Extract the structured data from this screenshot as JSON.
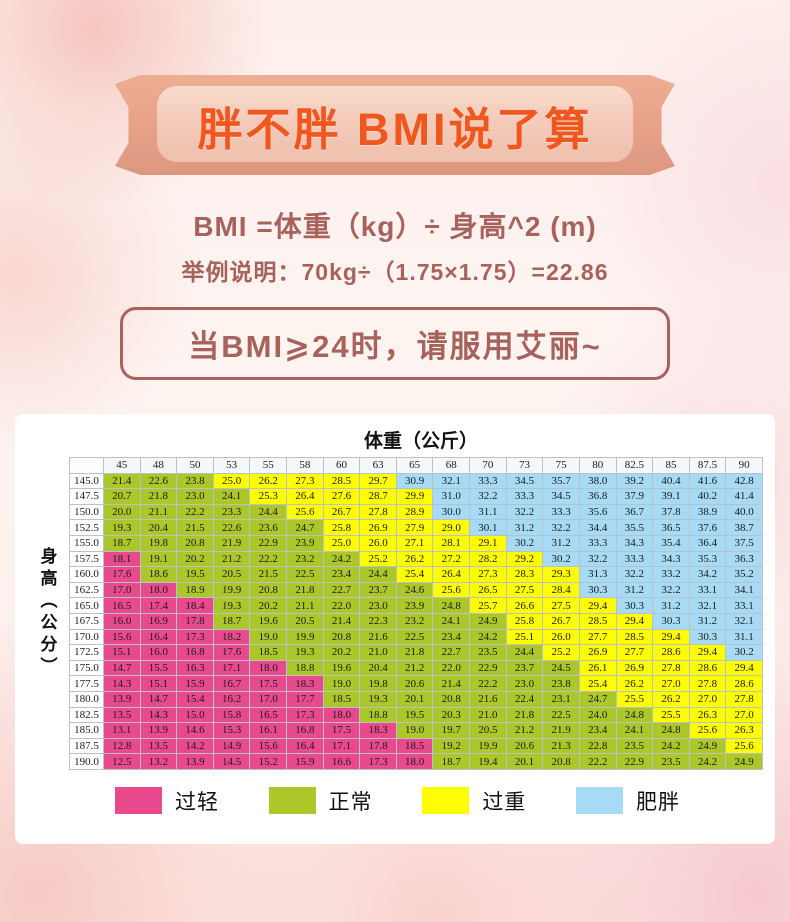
{
  "banner": {
    "title": "胖不胖 BMI说了算"
  },
  "formula": {
    "line1": "BMI =体重（kg）÷ 身高^2 (m)",
    "line2": "举例说明：70kg÷（1.75×1.75）=22.86"
  },
  "callout": {
    "text": "当BMI⩾24时，请服用艾丽~"
  },
  "chart_data": {
    "type": "heatmap",
    "title": "体重（公斤）",
    "xlabel": "体重（公斤）",
    "ylabel": "身高（公分）",
    "grid": true,
    "weight_columns": [
      "45",
      "48",
      "50",
      "53",
      "55",
      "58",
      "60",
      "63",
      "65",
      "68",
      "70",
      "73",
      "75",
      "80",
      "82.5",
      "85",
      "87.5",
      "90"
    ],
    "categories": {
      "p": {
        "label": "过轻",
        "color": "#e94a8e"
      },
      "g": {
        "label": "正常",
        "color": "#abc72a"
      },
      "y": {
        "label": "过重",
        "color": "#fffe00"
      },
      "b": {
        "label": "肥胖",
        "color": "#a7dbf5"
      }
    },
    "legend": [
      {
        "key": "p",
        "label": "过轻"
      },
      {
        "key": "g",
        "label": "正常"
      },
      {
        "key": "y",
        "label": "过重"
      },
      {
        "key": "b",
        "label": "肥胖"
      }
    ],
    "rows": [
      {
        "height": "145.0",
        "bmi": [
          21.4,
          22.6,
          23.8,
          25.0,
          26.2,
          27.3,
          28.5,
          29.7,
          30.9,
          32.1,
          33.3,
          34.5,
          35.7,
          38.0,
          39.2,
          40.4,
          41.6,
          42.8
        ],
        "cat": "gggyyyyybbbbbbbbbb"
      },
      {
        "height": "147.5",
        "bmi": [
          20.7,
          21.8,
          23.0,
          24.1,
          25.3,
          26.4,
          27.6,
          28.7,
          29.9,
          31.0,
          32.2,
          33.3,
          34.5,
          36.8,
          37.9,
          39.1,
          40.2,
          41.4
        ],
        "cat": "ggggyyyyybbbbbbbbb"
      },
      {
        "height": "150.0",
        "bmi": [
          20.0,
          21.1,
          22.2,
          23.3,
          24.4,
          25.6,
          26.7,
          27.8,
          28.9,
          30.0,
          31.1,
          32.2,
          33.3,
          35.6,
          36.7,
          37.8,
          38.9,
          40.0
        ],
        "cat": "gggggyyyybbbbbbbbb"
      },
      {
        "height": "152.5",
        "bmi": [
          19.3,
          20.4,
          21.5,
          22.6,
          23.6,
          24.7,
          25.8,
          26.9,
          27.9,
          29.0,
          30.1,
          31.2,
          32.2,
          34.4,
          35.5,
          36.5,
          37.6,
          38.7
        ],
        "cat": "ggggggyyyybbbbbbbb"
      },
      {
        "height": "155.0",
        "bmi": [
          18.7,
          19.8,
          20.8,
          21.9,
          22.9,
          23.9,
          25.0,
          26.0,
          27.1,
          28.1,
          29.1,
          30.2,
          31.2,
          33.3,
          34.3,
          35.4,
          36.4,
          37.5
        ],
        "cat": "ggggggyyyyybbbbbbb"
      },
      {
        "height": "157.5",
        "bmi": [
          18.1,
          19.1,
          20.2,
          21.2,
          22.2,
          23.2,
          24.2,
          25.2,
          26.2,
          27.2,
          28.2,
          29.2,
          30.2,
          32.2,
          33.3,
          34.3,
          35.3,
          36.3
        ],
        "cat": "pggggggyyyyybbbbbb"
      },
      {
        "height": "160.0",
        "bmi": [
          17.6,
          18.6,
          19.5,
          20.5,
          21.5,
          22.5,
          23.4,
          24.4,
          25.4,
          26.4,
          27.3,
          28.3,
          29.3,
          31.3,
          32.2,
          33.2,
          34.2,
          35.2
        ],
        "cat": "pgggggggyyyyybbbbb"
      },
      {
        "height": "162.5",
        "bmi": [
          17.0,
          18.0,
          18.9,
          19.9,
          20.8,
          21.8,
          22.7,
          23.7,
          24.6,
          25.6,
          26.5,
          27.5,
          28.4,
          30.3,
          31.2,
          32.2,
          33.1,
          34.1
        ],
        "cat": "ppgggggggyyyybbbbb"
      },
      {
        "height": "165.0",
        "bmi": [
          16.5,
          17.4,
          18.4,
          19.3,
          20.2,
          21.1,
          22.0,
          23.0,
          23.9,
          24.8,
          25.7,
          26.6,
          27.5,
          29.4,
          30.3,
          31.2,
          32.1,
          33.1
        ],
        "cat": "pppgggggggyyyybbbb"
      },
      {
        "height": "167.5",
        "bmi": [
          16.0,
          16.9,
          17.8,
          18.7,
          19.6,
          20.5,
          21.4,
          22.3,
          23.2,
          24.1,
          24.9,
          25.8,
          26.7,
          28.5,
          29.4,
          30.3,
          31.2,
          32.1
        ],
        "cat": "pppggggggggyyyybbb"
      },
      {
        "height": "170.0",
        "bmi": [
          15.6,
          16.4,
          17.3,
          18.2,
          19.0,
          19.9,
          20.8,
          21.6,
          22.5,
          23.4,
          24.2,
          25.1,
          26.0,
          27.7,
          28.5,
          29.4,
          30.3,
          31.1
        ],
        "cat": "ppppgggggggyyyyybb"
      },
      {
        "height": "172.5",
        "bmi": [
          15.1,
          16.0,
          16.8,
          17.6,
          18.5,
          19.3,
          20.2,
          21.0,
          21.8,
          22.7,
          23.5,
          24.4,
          25.2,
          26.9,
          27.7,
          28.6,
          29.4,
          30.2
        ],
        "cat": "ppppggggggggyyyyyb"
      },
      {
        "height": "175.0",
        "bmi": [
          14.7,
          15.5,
          16.3,
          17.1,
          18.0,
          18.8,
          19.6,
          20.4,
          21.2,
          22.0,
          22.9,
          23.7,
          24.5,
          26.1,
          26.9,
          27.8,
          28.6,
          29.4
        ],
        "cat": "pppppggggggggyyyyy"
      },
      {
        "height": "177.5",
        "bmi": [
          14.3,
          15.1,
          15.9,
          16.7,
          17.5,
          18.3,
          19.0,
          19.8,
          20.6,
          21.4,
          22.2,
          23.0,
          23.8,
          25.4,
          26.2,
          27.0,
          27.8,
          28.6
        ],
        "cat": "ppppppgggggggyyyyy"
      },
      {
        "height": "180.0",
        "bmi": [
          13.9,
          14.7,
          15.4,
          16.2,
          17.0,
          17.7,
          18.5,
          19.3,
          20.1,
          20.8,
          21.6,
          22.4,
          23.1,
          24.7,
          25.5,
          26.2,
          27.0,
          27.8
        ],
        "cat": "ppppppggggggggyyyy"
      },
      {
        "height": "182.5",
        "bmi": [
          13.5,
          14.3,
          15.0,
          15.8,
          16.5,
          17.3,
          18.0,
          18.8,
          19.5,
          20.3,
          21.0,
          21.8,
          22.5,
          24.0,
          24.8,
          25.5,
          26.3,
          27.0
        ],
        "cat": "pppppppggggggggyyy"
      },
      {
        "height": "185.0",
        "bmi": [
          13.1,
          13.9,
          14.6,
          15.3,
          16.1,
          16.8,
          17.5,
          18.3,
          19.0,
          19.7,
          20.5,
          21.2,
          21.9,
          23.4,
          24.1,
          24.8,
          25.6,
          26.3
        ],
        "cat": "ppppppppggggggggyy"
      },
      {
        "height": "187.5",
        "bmi": [
          12.8,
          13.5,
          14.2,
          14.9,
          15.6,
          16.4,
          17.1,
          17.8,
          18.5,
          19.2,
          19.9,
          20.6,
          21.3,
          22.8,
          23.5,
          24.2,
          24.9,
          25.6
        ],
        "cat": "pppppppppggggggggy"
      },
      {
        "height": "190.0",
        "bmi": [
          12.5,
          13.2,
          13.9,
          14.5,
          15.2,
          15.9,
          16.6,
          17.3,
          18.0,
          18.7,
          19.4,
          20.1,
          20.8,
          22.2,
          22.9,
          23.5,
          24.2,
          24.9
        ],
        "cat": "pppppppppggggggggg"
      }
    ]
  }
}
